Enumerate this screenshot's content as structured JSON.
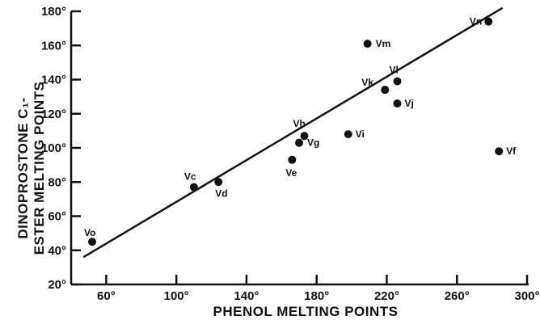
{
  "chart_data": {
    "type": "scatter",
    "xlabel": "PHENOL MELTING POINTS",
    "ylabel_lines": [
      "DINOPROSTONE C₁-",
      "ESTER MELTING POINTS"
    ],
    "xlim": [
      40,
      300
    ],
    "ylim": [
      20,
      180
    ],
    "x_ticks": [
      60,
      100,
      140,
      180,
      220,
      260,
      300
    ],
    "x_tick_labels": [
      "60°",
      "100°",
      "140°",
      "180°",
      "220°",
      "260°",
      "300°"
    ],
    "y_ticks": [
      20,
      40,
      60,
      80,
      100,
      120,
      140,
      160,
      180
    ],
    "y_tick_labels": [
      "20°",
      "40°",
      "60°",
      "80°",
      "100°",
      "120°",
      "140°",
      "160°",
      "180°"
    ],
    "points": [
      {
        "label": "Vo",
        "x": 52,
        "y": 45
      },
      {
        "label": "Vc",
        "x": 110,
        "y": 77
      },
      {
        "label": "Vd",
        "x": 124,
        "y": 80
      },
      {
        "label": "Ve",
        "x": 166,
        "y": 93
      },
      {
        "label": "Vg",
        "x": 170,
        "y": 103
      },
      {
        "label": "Vh",
        "x": 173,
        "y": 107
      },
      {
        "label": "Vi",
        "x": 198,
        "y": 108
      },
      {
        "label": "Vk",
        "x": 219,
        "y": 134
      },
      {
        "label": "Vl",
        "x": 226,
        "y": 139
      },
      {
        "label": "Vj",
        "x": 226,
        "y": 126
      },
      {
        "label": "Vm",
        "x": 209,
        "y": 161
      },
      {
        "label": "Vn",
        "x": 278,
        "y": 174
      },
      {
        "label": "Vf",
        "x": 284,
        "y": 98
      }
    ],
    "fit_line": {
      "x": [
        47,
        286
      ],
      "y": [
        36,
        182
      ]
    },
    "grid": false,
    "legend": "none"
  }
}
